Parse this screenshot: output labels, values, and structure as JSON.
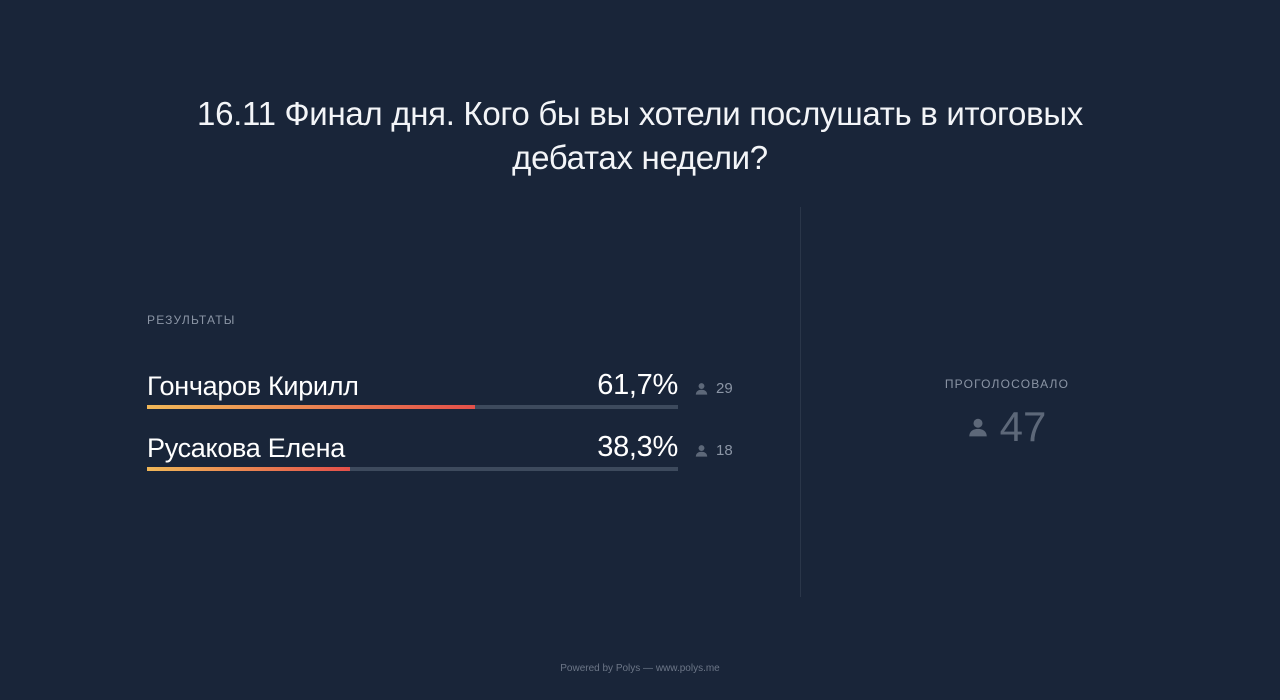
{
  "poll": {
    "question": "16.11 Финал дня. Кого бы вы хотели послушать в итоговых дебатах недели?",
    "results_label": "РЕЗУЛЬТАТЫ",
    "options": [
      {
        "name": "Гончаров Кирилл",
        "percent_label": "61,7%",
        "percent": 61.7,
        "votes": "29"
      },
      {
        "name": "Русакова Елена",
        "percent_label": "38,3%",
        "percent": 38.3,
        "votes": "18"
      }
    ],
    "voted_label": "ПРОГОЛОСОВАЛО",
    "voted_total": "47"
  },
  "footer": {
    "text": "Powered by Polys — www.polys.me"
  },
  "colors": {
    "background": "#192539",
    "bar_track": "#3d4a5d",
    "bar_gradient_start": "#f0b758",
    "bar_gradient_end": "#e3504a",
    "muted_text": "#8b95a5"
  },
  "icons": {
    "vote_count_icon": "person-icon",
    "total_icon": "person-icon"
  }
}
